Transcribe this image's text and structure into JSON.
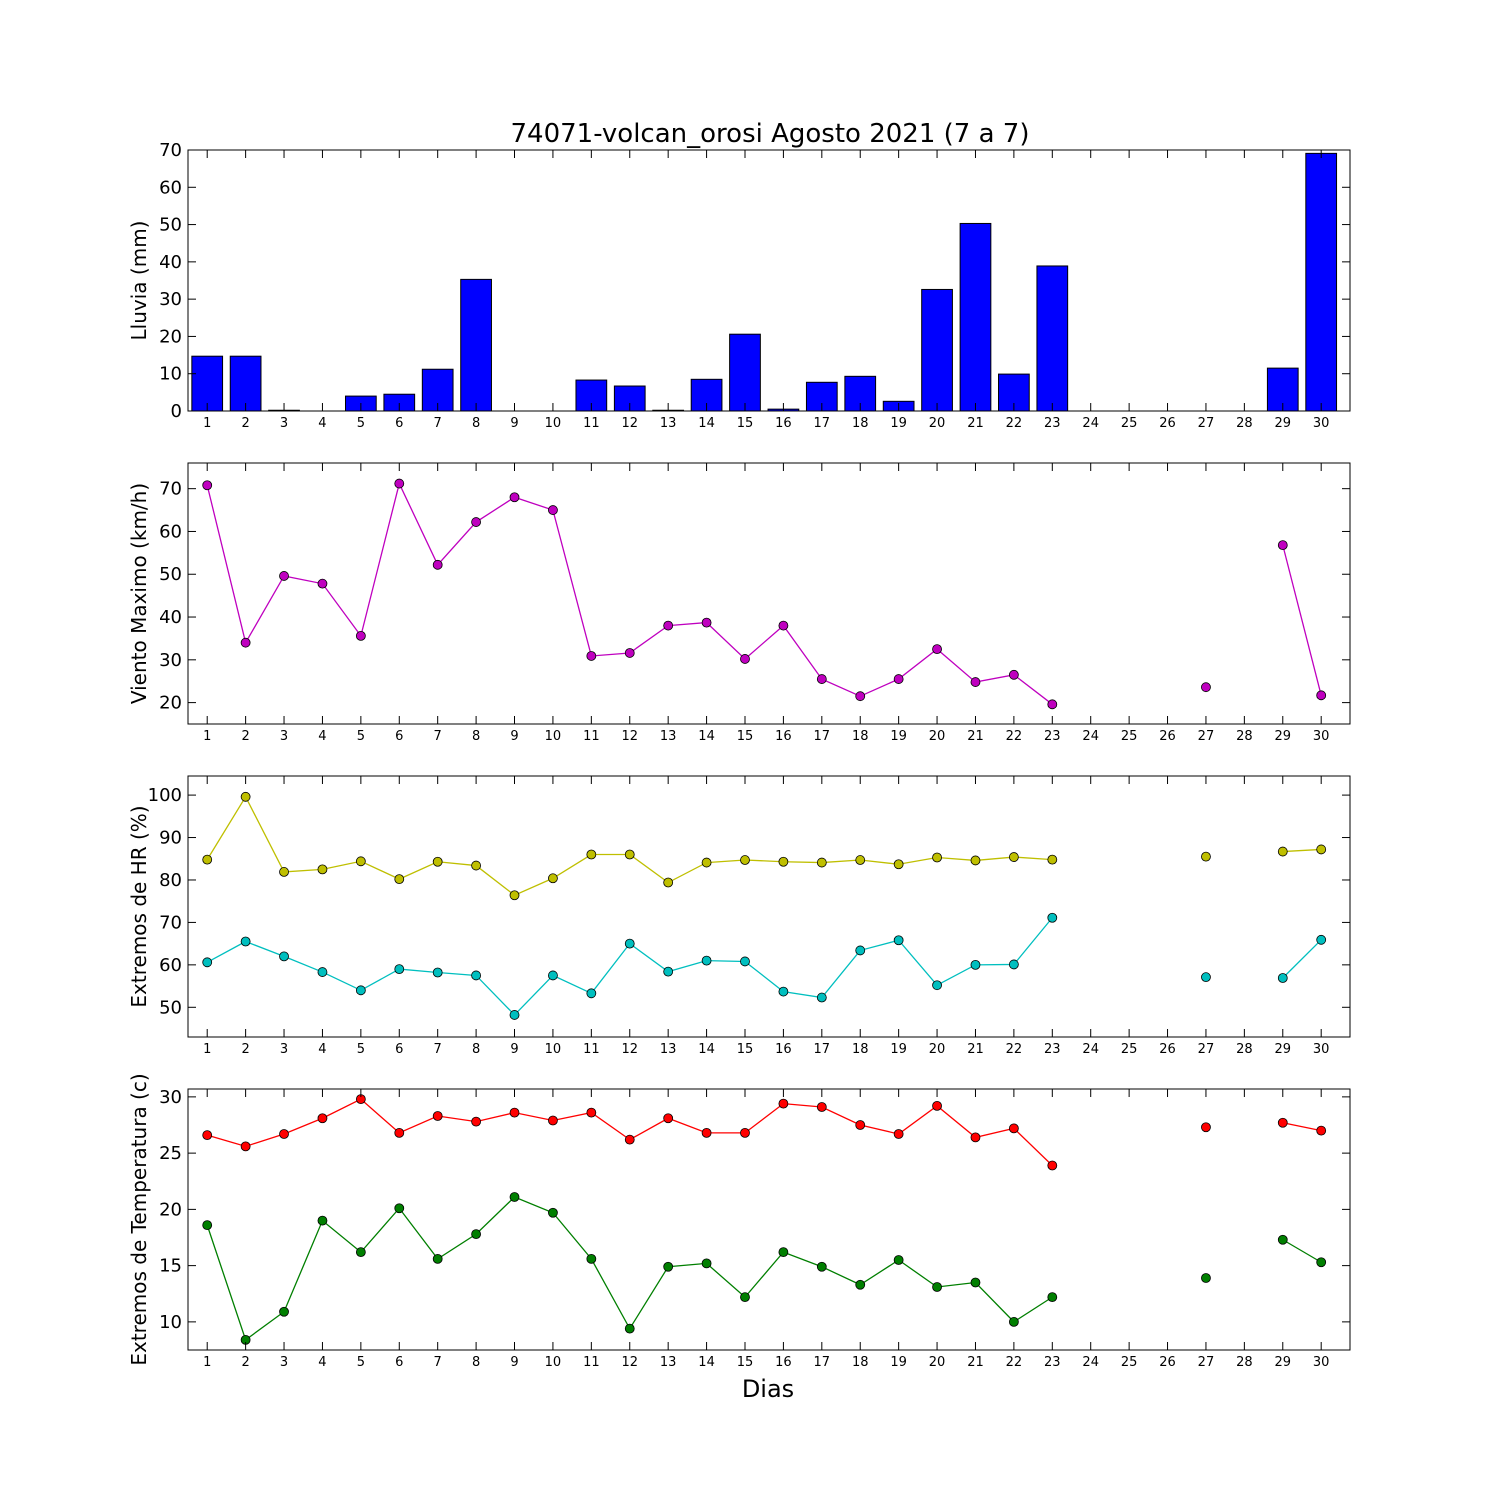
{
  "chart_data": {
    "type": "multi-panel",
    "title": "74071-volcan_orosi Agosto 2021  (7 a 7)",
    "xlabel": "Dias",
    "x": [
      1,
      2,
      3,
      4,
      5,
      6,
      7,
      8,
      9,
      10,
      11,
      12,
      13,
      14,
      15,
      16,
      17,
      18,
      19,
      20,
      21,
      22,
      23,
      24,
      25,
      26,
      27,
      28,
      29,
      30
    ],
    "panels": [
      {
        "type": "bar",
        "ylabel": "Lluvia (mm)",
        "ylim": [
          0,
          70
        ],
        "yticks": [
          0,
          10,
          20,
          30,
          40,
          50,
          60,
          70
        ],
        "series": [
          {
            "color": "#0000ff",
            "values": [
              14.7,
              14.7,
              0.2,
              0,
              4.0,
              4.5,
              11.2,
              35.3,
              0,
              0,
              8.3,
              6.7,
              0.2,
              8.5,
              20.6,
              0.5,
              7.7,
              9.3,
              2.6,
              32.6,
              50.3,
              9.9,
              38.9,
              0,
              0,
              0,
              0,
              0,
              11.5,
              69.1
            ]
          }
        ]
      },
      {
        "type": "line",
        "ylabel": "Viento Maximo (km/h)",
        "ylim": [
          15,
          76
        ],
        "yticks": [
          20,
          30,
          40,
          50,
          60,
          70
        ],
        "series": [
          {
            "color": "#bf00bf",
            "values": [
              70.8,
              34.0,
              49.6,
              47.8,
              35.6,
              71.2,
              52.2,
              62.2,
              68.0,
              65.0,
              30.9,
              31.6,
              38.0,
              38.7,
              30.2,
              38.0,
              25.5,
              21.5,
              25.5,
              32.5,
              24.8,
              26.5,
              19.6,
              null,
              null,
              null,
              23.6,
              null,
              56.8,
              21.7
            ]
          }
        ]
      },
      {
        "type": "line",
        "ylabel": "Extremos de HR (%)",
        "ylim": [
          43,
          104.5
        ],
        "yticks": [
          50,
          60,
          70,
          80,
          90,
          100
        ],
        "series": [
          {
            "color": "#bfbf00",
            "values": [
              84.8,
              99.6,
              81.9,
              82.5,
              84.4,
              80.2,
              84.3,
              83.4,
              76.4,
              80.4,
              86.0,
              86.0,
              79.4,
              84.1,
              84.7,
              84.3,
              84.1,
              84.7,
              83.7,
              85.3,
              84.6,
              85.4,
              84.8,
              null,
              null,
              null,
              85.5,
              null,
              86.7,
              87.2
            ]
          },
          {
            "color": "#00bfbf",
            "values": [
              60.6,
              65.5,
              62.0,
              58.3,
              54.0,
              59.0,
              58.2,
              57.5,
              48.2,
              57.5,
              53.3,
              65.0,
              58.4,
              61.0,
              60.8,
              53.7,
              52.3,
              63.4,
              65.8,
              55.2,
              60.0,
              60.1,
              71.1,
              null,
              null,
              null,
              57.1,
              null,
              56.9,
              65.9
            ]
          }
        ]
      },
      {
        "type": "line",
        "ylabel": "Extremos de Temperatura (c)",
        "ylim": [
          7.5,
          30.7
        ],
        "yticks": [
          10,
          15,
          20,
          25,
          30
        ],
        "series": [
          {
            "color": "#ff0000",
            "values": [
              26.6,
              25.6,
              26.7,
              28.1,
              29.8,
              26.8,
              28.3,
              27.8,
              28.6,
              27.9,
              28.6,
              26.2,
              28.1,
              26.8,
              26.8,
              29.4,
              29.1,
              27.5,
              26.7,
              29.2,
              26.4,
              27.2,
              23.9,
              null,
              null,
              null,
              27.3,
              null,
              27.7,
              27.0
            ]
          },
          {
            "color": "#007f00",
            "values": [
              18.6,
              8.4,
              10.9,
              19.0,
              16.2,
              20.1,
              15.6,
              17.8,
              21.1,
              19.7,
              15.6,
              9.4,
              14.9,
              15.2,
              12.2,
              16.2,
              14.9,
              13.3,
              15.5,
              13.1,
              13.5,
              10.0,
              12.2,
              null,
              null,
              null,
              13.9,
              null,
              17.3,
              15.3
            ]
          }
        ]
      }
    ]
  }
}
